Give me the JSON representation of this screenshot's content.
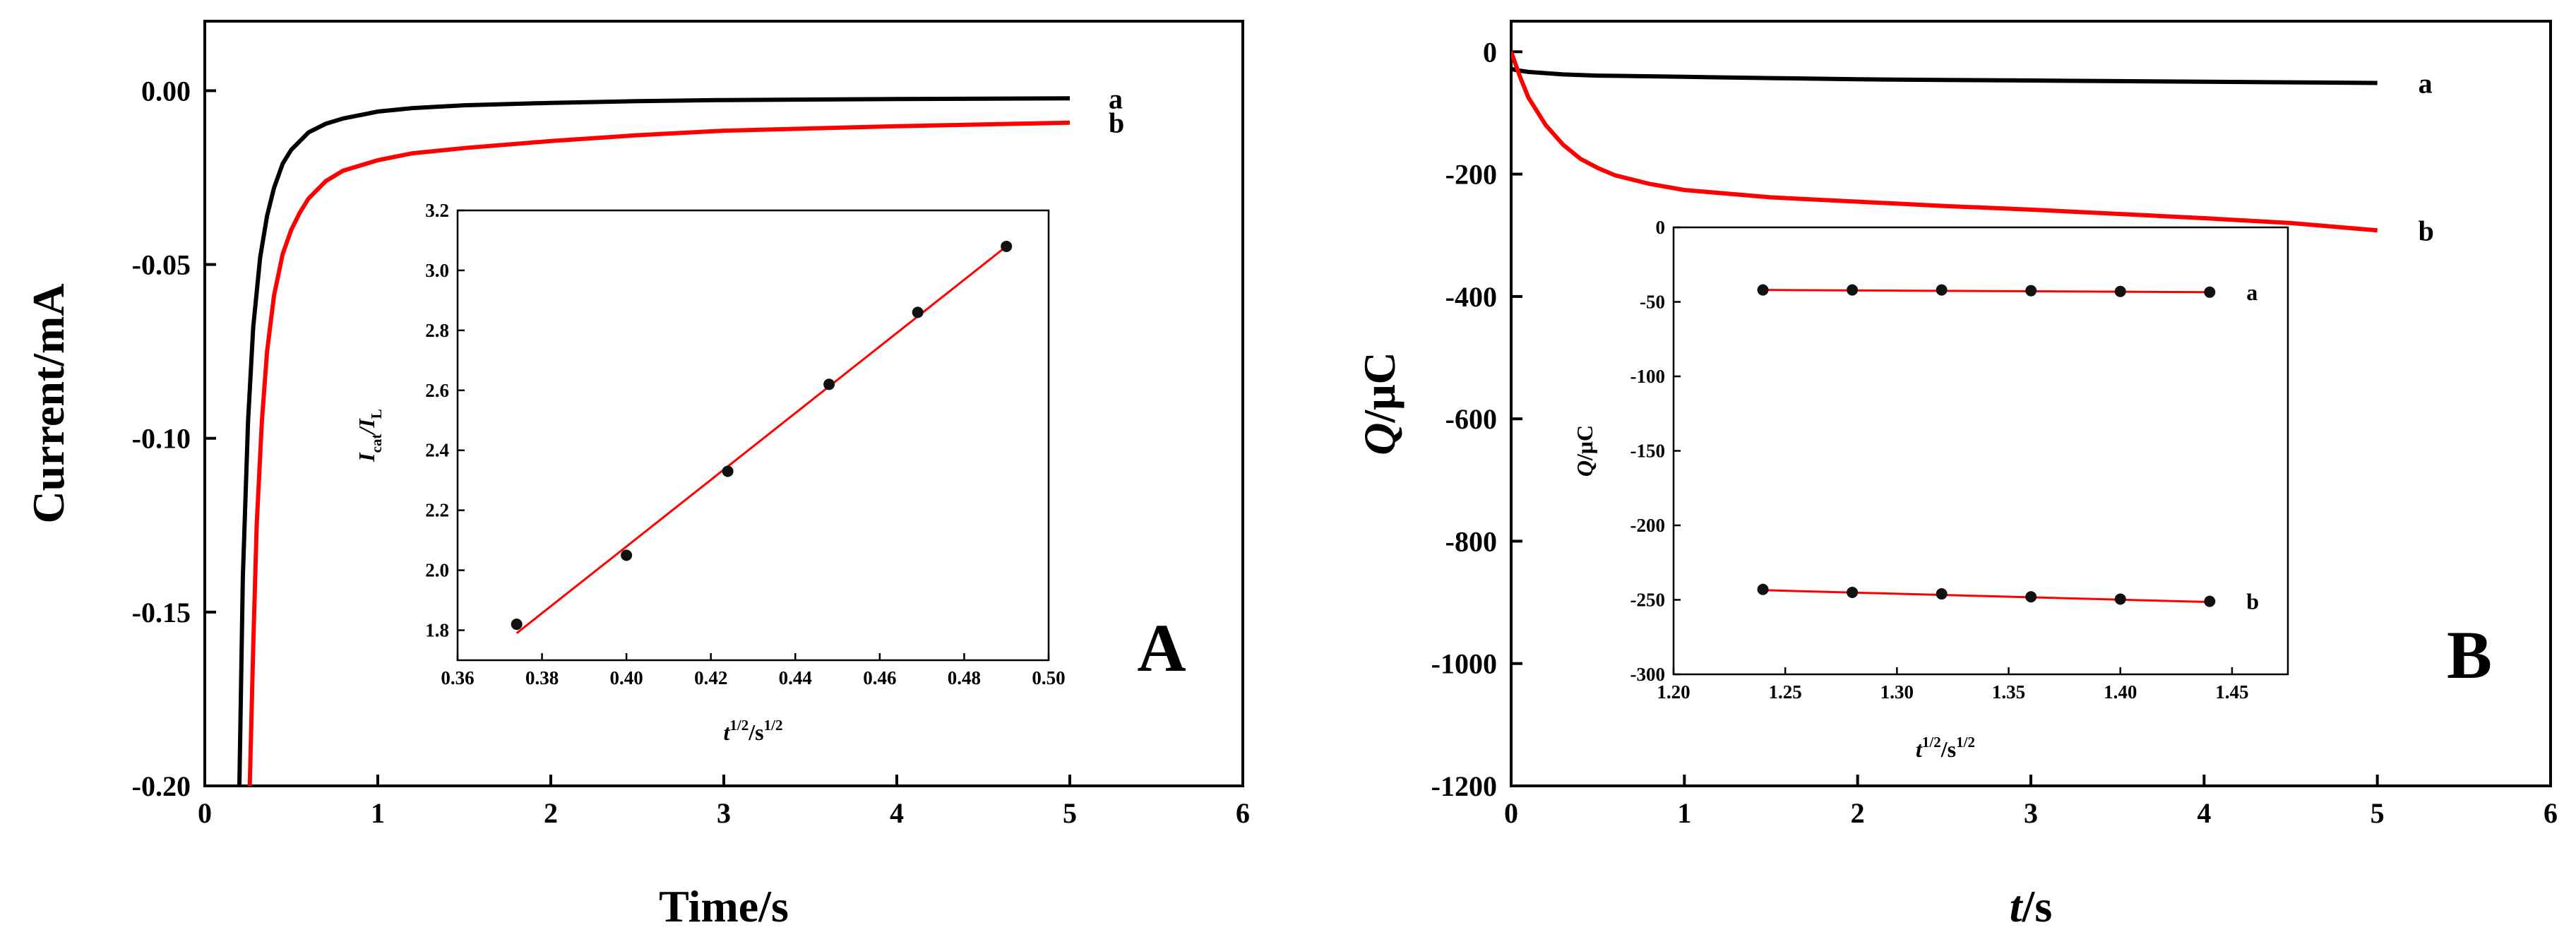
{
  "chart_data": [
    {
      "id": "A",
      "type": "line",
      "panel_label": "A",
      "xlabel": "Time/s",
      "ylabel": "Current/mA",
      "xlim": [
        0,
        6
      ],
      "ylim": [
        -0.2,
        0.02
      ],
      "xticks": [
        0,
        1,
        2,
        3,
        4,
        5,
        6
      ],
      "xtick_labels": [
        "0",
        "1",
        "2",
        "3",
        "4",
        "5",
        "6"
      ],
      "yticks": [
        -0.2,
        -0.15,
        -0.1,
        -0.05,
        0.0
      ],
      "ytick_labels": [
        "-0.20",
        "-0.15",
        "-0.10",
        "-0.05",
        "0.00"
      ],
      "series": [
        {
          "name": "a",
          "color": "#000000",
          "x": [
            0.2,
            0.22,
            0.25,
            0.28,
            0.32,
            0.36,
            0.4,
            0.45,
            0.5,
            0.6,
            0.7,
            0.8,
            1.0,
            1.2,
            1.5,
            2.0,
            2.5,
            3.0,
            4.0,
            5.0
          ],
          "y": [
            -0.2,
            -0.14,
            -0.095,
            -0.068,
            -0.048,
            -0.036,
            -0.028,
            -0.021,
            -0.017,
            -0.012,
            -0.0095,
            -0.008,
            -0.006,
            -0.005,
            -0.0042,
            -0.0035,
            -0.003,
            -0.0027,
            -0.0024,
            -0.0022
          ]
        },
        {
          "name": "b",
          "color": "#ff0000",
          "x": [
            0.26,
            0.28,
            0.3,
            0.33,
            0.36,
            0.4,
            0.45,
            0.5,
            0.55,
            0.6,
            0.7,
            0.8,
            1.0,
            1.2,
            1.5,
            2.0,
            2.5,
            3.0,
            4.0,
            5.0
          ],
          "y": [
            -0.2,
            -0.16,
            -0.125,
            -0.095,
            -0.075,
            -0.059,
            -0.047,
            -0.04,
            -0.035,
            -0.031,
            -0.026,
            -0.023,
            -0.02,
            -0.018,
            -0.0165,
            -0.0145,
            -0.0128,
            -0.0115,
            -0.0102,
            -0.0092
          ]
        }
      ],
      "inset": {
        "type": "scatter",
        "xlabel": "t",
        "xlabel_sup": "1/2",
        "xlabel_mid": "/s",
        "xlabel_sup2": "1/2",
        "ylabel": "I",
        "ylabel_sub": "cat",
        "ylabel_mid": "/I",
        "ylabel_sub2": "L",
        "xlim": [
          0.36,
          0.5
        ],
        "ylim": [
          1.7,
          3.2
        ],
        "xticks": [
          0.36,
          0.38,
          0.4,
          0.42,
          0.44,
          0.46,
          0.48,
          0.5
        ],
        "xtick_labels": [
          "0.36",
          "0.38",
          "0.40",
          "0.42",
          "0.44",
          "0.46",
          "0.48",
          "0.50"
        ],
        "yticks": [
          1.8,
          2.0,
          2.2,
          2.4,
          2.6,
          2.8,
          3.0,
          3.2
        ],
        "ytick_labels": [
          "1.8",
          "2.0",
          "2.2",
          "2.4",
          "2.6",
          "2.8",
          "3.0",
          "3.2"
        ],
        "points": {
          "x": [
            0.374,
            0.4,
            0.424,
            0.448,
            0.469,
            0.49
          ],
          "y": [
            1.82,
            2.05,
            2.33,
            2.62,
            2.86,
            3.08
          ]
        },
        "fit": {
          "x": [
            0.374,
            0.49
          ],
          "y": [
            1.79,
            3.08
          ],
          "color": "#ff0000"
        }
      }
    },
    {
      "id": "B",
      "type": "line",
      "panel_label": "B",
      "xlabel": "t",
      "xlabel_suffix": "/s",
      "ylabel": "Q",
      "ylabel_suffix": "/μC",
      "xlim": [
        0,
        6
      ],
      "ylim": [
        -1200,
        50
      ],
      "xticks": [
        0,
        1,
        2,
        3,
        4,
        5,
        6
      ],
      "xtick_labels": [
        "0",
        "1",
        "2",
        "3",
        "4",
        "5",
        "6"
      ],
      "yticks": [
        -1200,
        -1000,
        -800,
        -600,
        -400,
        -200,
        0
      ],
      "ytick_labels": [
        "-1200",
        "-1000",
        "-800",
        "-600",
        "-400",
        "-200",
        "0"
      ],
      "series": [
        {
          "name": "a",
          "color": "#000000",
          "x": [
            0,
            0.03,
            0.1,
            0.3,
            0.5,
            1.0,
            1.5,
            2.0,
            2.5,
            3.0,
            3.5,
            4.0,
            4.5,
            5.0
          ],
          "y": [
            -28,
            -30,
            -33,
            -37,
            -39,
            -41,
            -43,
            -45,
            -46,
            -47,
            -48,
            -49,
            -50,
            -51
          ]
        },
        {
          "name": "b",
          "color": "#ff0000",
          "x": [
            0,
            0.05,
            0.1,
            0.2,
            0.3,
            0.4,
            0.5,
            0.6,
            0.8,
            1.0,
            1.5,
            2.0,
            2.5,
            3.0,
            3.5,
            4.0,
            4.5,
            5.0
          ],
          "y": [
            0,
            -40,
            -75,
            -120,
            -152,
            -175,
            -190,
            -202,
            -216,
            -226,
            -238,
            -245,
            -252,
            -258,
            -265,
            -272,
            -280,
            -292
          ]
        }
      ],
      "inset": {
        "type": "scatter",
        "xlabel": "t",
        "xlabel_sup": "1/2",
        "xlabel_mid": "/s",
        "xlabel_sup2": "1/2",
        "ylabel": "Q",
        "ylabel_mid": "/μC",
        "xlim": [
          1.2,
          1.475
        ],
        "ylim": [
          -300,
          0
        ],
        "xticks": [
          1.2,
          1.25,
          1.3,
          1.35,
          1.4,
          1.45
        ],
        "xtick_labels": [
          "1.20",
          "1.25",
          "1.30",
          "1.35",
          "1.40",
          "1.45"
        ],
        "yticks": [
          -300,
          -250,
          -200,
          -150,
          -100,
          -50,
          0
        ],
        "ytick_labels": [
          "-300",
          "-250",
          "-200",
          "-150",
          "-100",
          "-50",
          "0"
        ],
        "series": [
          {
            "name": "a",
            "points": {
              "x": [
                1.24,
                1.28,
                1.32,
                1.36,
                1.4,
                1.44
              ],
              "y": [
                -42,
                -42,
                -42,
                -42.5,
                -43,
                -43.5
              ]
            },
            "fit": {
              "x": [
                1.24,
                1.44
              ],
              "y": [
                -42,
                -43.5
              ]
            },
            "color": "#ff0000"
          },
          {
            "name": "b",
            "points": {
              "x": [
                1.24,
                1.28,
                1.32,
                1.36,
                1.4,
                1.44
              ],
              "y": [
                -243,
                -245,
                -246,
                -248,
                -249.5,
                -251
              ]
            },
            "fit": {
              "x": [
                1.24,
                1.44
              ],
              "y": [
                -243.5,
                -251.5
              ]
            },
            "color": "#ff0000"
          }
        ]
      }
    }
  ]
}
